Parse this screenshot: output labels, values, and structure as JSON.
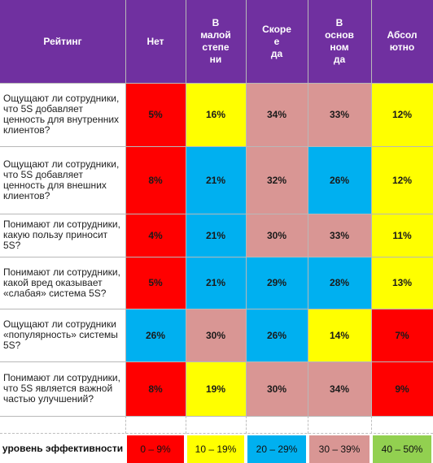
{
  "colors": {
    "header": "#7030a0",
    "red": "#ff0000",
    "yellow": "#ffff00",
    "blue": "#00b0f0",
    "pink": "#d99694",
    "green": "#92d050"
  },
  "headers": [
    "Рейтинг",
    "Нет",
    "В малой степе ни",
    "Скоре е да",
    "В основ ном да",
    "Абсол ютно"
  ],
  "header_lines": [
    [
      "Рейтинг"
    ],
    [
      "Нет"
    ],
    [
      "В",
      "малой",
      "степе",
      "ни"
    ],
    [
      "Скоре",
      "е",
      "да"
    ],
    [
      "В",
      "основ",
      "ном",
      "да"
    ],
    [
      "Абсол",
      "ютно"
    ]
  ],
  "rows": [
    {
      "question": "Ощущают ли сотрудники, что 5S добавляет ценность для внутренних клиентов?",
      "values": [
        "5%",
        "16%",
        "34%",
        "33%",
        "12%"
      ],
      "colors": [
        "red",
        "yellow",
        "pink",
        "pink",
        "yellow"
      ]
    },
    {
      "question": "Ощущают ли сотрудники, что 5S добавляет ценность для внешних клиентов?",
      "values": [
        "8%",
        "21%",
        "32%",
        "26%",
        "12%"
      ],
      "colors": [
        "red",
        "blue",
        "pink",
        "blue",
        "yellow"
      ]
    },
    {
      "question": "Понимают ли сотрудники, какую пользу приносит 5S?",
      "values": [
        "4%",
        "21%",
        "30%",
        "33%",
        "11%"
      ],
      "colors": [
        "red",
        "blue",
        "pink",
        "pink",
        "yellow"
      ]
    },
    {
      "question": "Понимают ли сотрудники, какой вред оказывает «слабая» система 5S?",
      "values": [
        "5%",
        "21%",
        "29%",
        "28%",
        "13%"
      ],
      "colors": [
        "red",
        "blue",
        "blue",
        "blue",
        "yellow"
      ]
    },
    {
      "question": "Ощущают ли сотрудники «популярность» системы 5S?",
      "values": [
        "26%",
        "30%",
        "26%",
        "14%",
        "7%"
      ],
      "colors": [
        "blue",
        "pink",
        "blue",
        "yellow",
        "red"
      ]
    },
    {
      "question": "Понимают ли сотрудники, что 5S является важной частью улучшений?",
      "values": [
        "8%",
        "19%",
        "30%",
        "34%",
        "9%"
      ],
      "colors": [
        "red",
        "yellow",
        "pink",
        "pink",
        "red"
      ]
    }
  ],
  "legend": {
    "label": "уровень эффективности",
    "items": [
      {
        "text": "0 – 9%",
        "color": "red"
      },
      {
        "text": "10 – 19%",
        "color": "yellow"
      },
      {
        "text": "20 – 29%",
        "color": "blue"
      },
      {
        "text": "30 – 39%",
        "color": "pink"
      },
      {
        "text": "40 – 50%",
        "color": "green"
      }
    ]
  }
}
